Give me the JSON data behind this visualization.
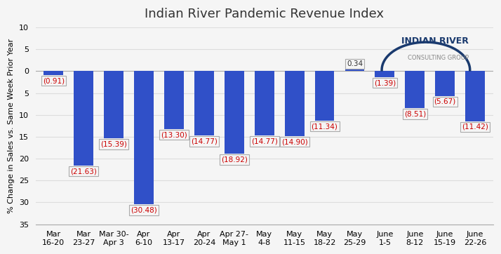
{
  "title": "Indian River Pandemic Revenue Index",
  "ylabel": "% Change in Sales vs. Same Week Prior Year",
  "categories": [
    "Mar\n16-20",
    "Mar\n23-27",
    "Mar 30-\nApr 3",
    "Apr\n6-10",
    "Apr\n13-17",
    "Apr\n20-24",
    "Apr 27-\nMay 1",
    "May\n4-8",
    "May\n11-15",
    "May\n18-22",
    "May\n25-29",
    "June\n1-5",
    "June\n8-12",
    "June\n15-19",
    "June\n22-26"
  ],
  "values": [
    -0.91,
    -21.63,
    -15.39,
    -30.48,
    -13.3,
    -14.77,
    -18.92,
    -14.77,
    -14.9,
    -11.34,
    0.34,
    -1.39,
    -8.51,
    -5.67,
    -11.42
  ],
  "labels": [
    "(0.91)",
    "(21.63)",
    "(15.39)",
    "(30.48)",
    "(13.30)",
    "(14.77)",
    "(18.92)",
    "(14.77)",
    "(14.90)",
    "(11.34)",
    "0.34",
    "(1.39)",
    "(8.51)",
    "(5.67)",
    "(11.42)"
  ],
  "bar_color": "#3050c8",
  "label_color_negative": "#cc0000",
  "label_color_positive": "#333333",
  "ylim": [
    -35,
    10
  ],
  "yticks": [
    -35,
    -30,
    -25,
    -20,
    -15,
    -10,
    -5,
    0,
    5,
    10
  ],
  "ytick_labels": [
    "-35",
    "-30",
    "-25",
    "-20",
    "-15",
    "-10",
    "-5",
    "0",
    "5",
    "10"
  ],
  "background_color": "#f5f5f5",
  "grid_color": "#dddddd",
  "title_fontsize": 13,
  "axis_label_fontsize": 8,
  "tick_fontsize": 8,
  "bar_label_fontsize": 7.5
}
